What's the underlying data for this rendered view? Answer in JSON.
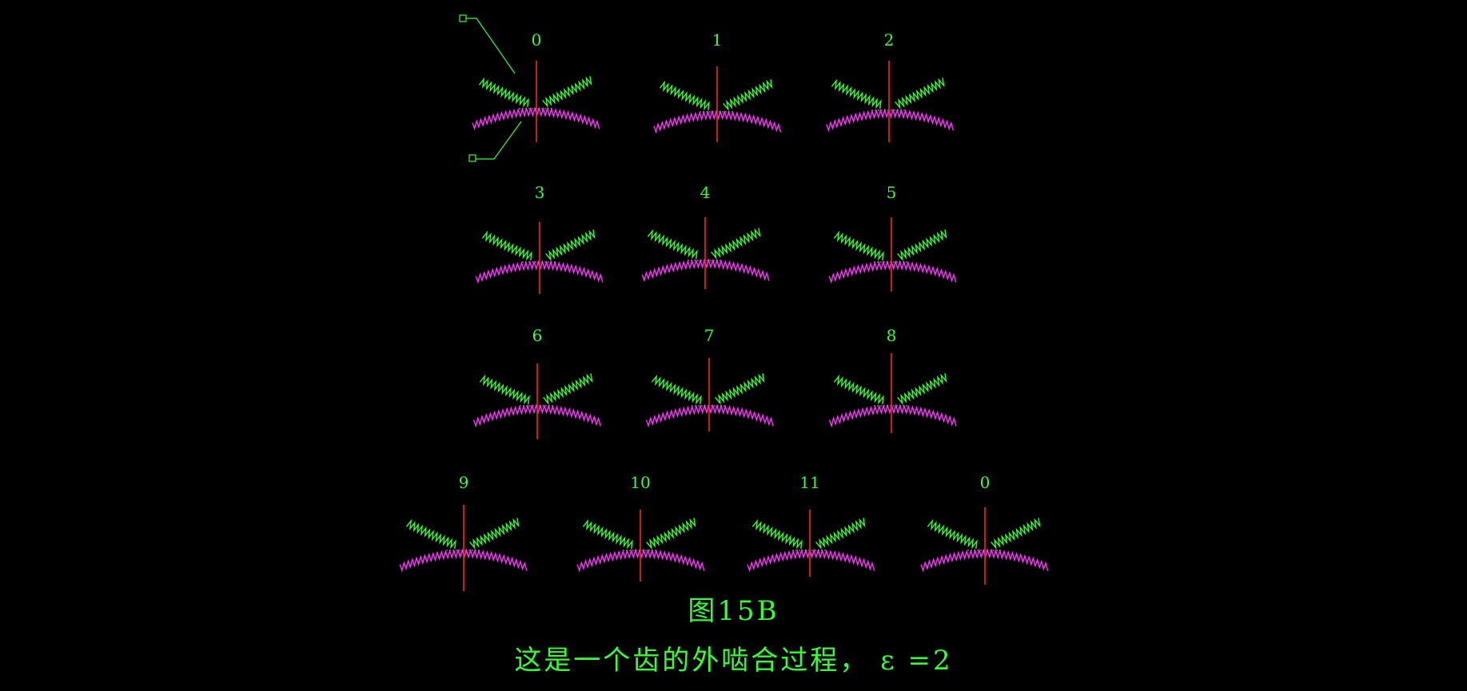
{
  "figure": {
    "title": "图15B",
    "subtitle": "这是一个齿的外啮合过程， ε =2"
  },
  "frames": [
    "0",
    "1",
    "2",
    "3",
    "4",
    "5",
    "6",
    "7",
    "8",
    "9",
    "10",
    "11",
    "0"
  ],
  "colors": {
    "background": "#000000",
    "label": "#33ff33",
    "pinion_teeth": "#33ff33",
    "gear_teeth": "#ff33ff",
    "center_line": "#ff2222",
    "contact": "#aaaaaa"
  }
}
